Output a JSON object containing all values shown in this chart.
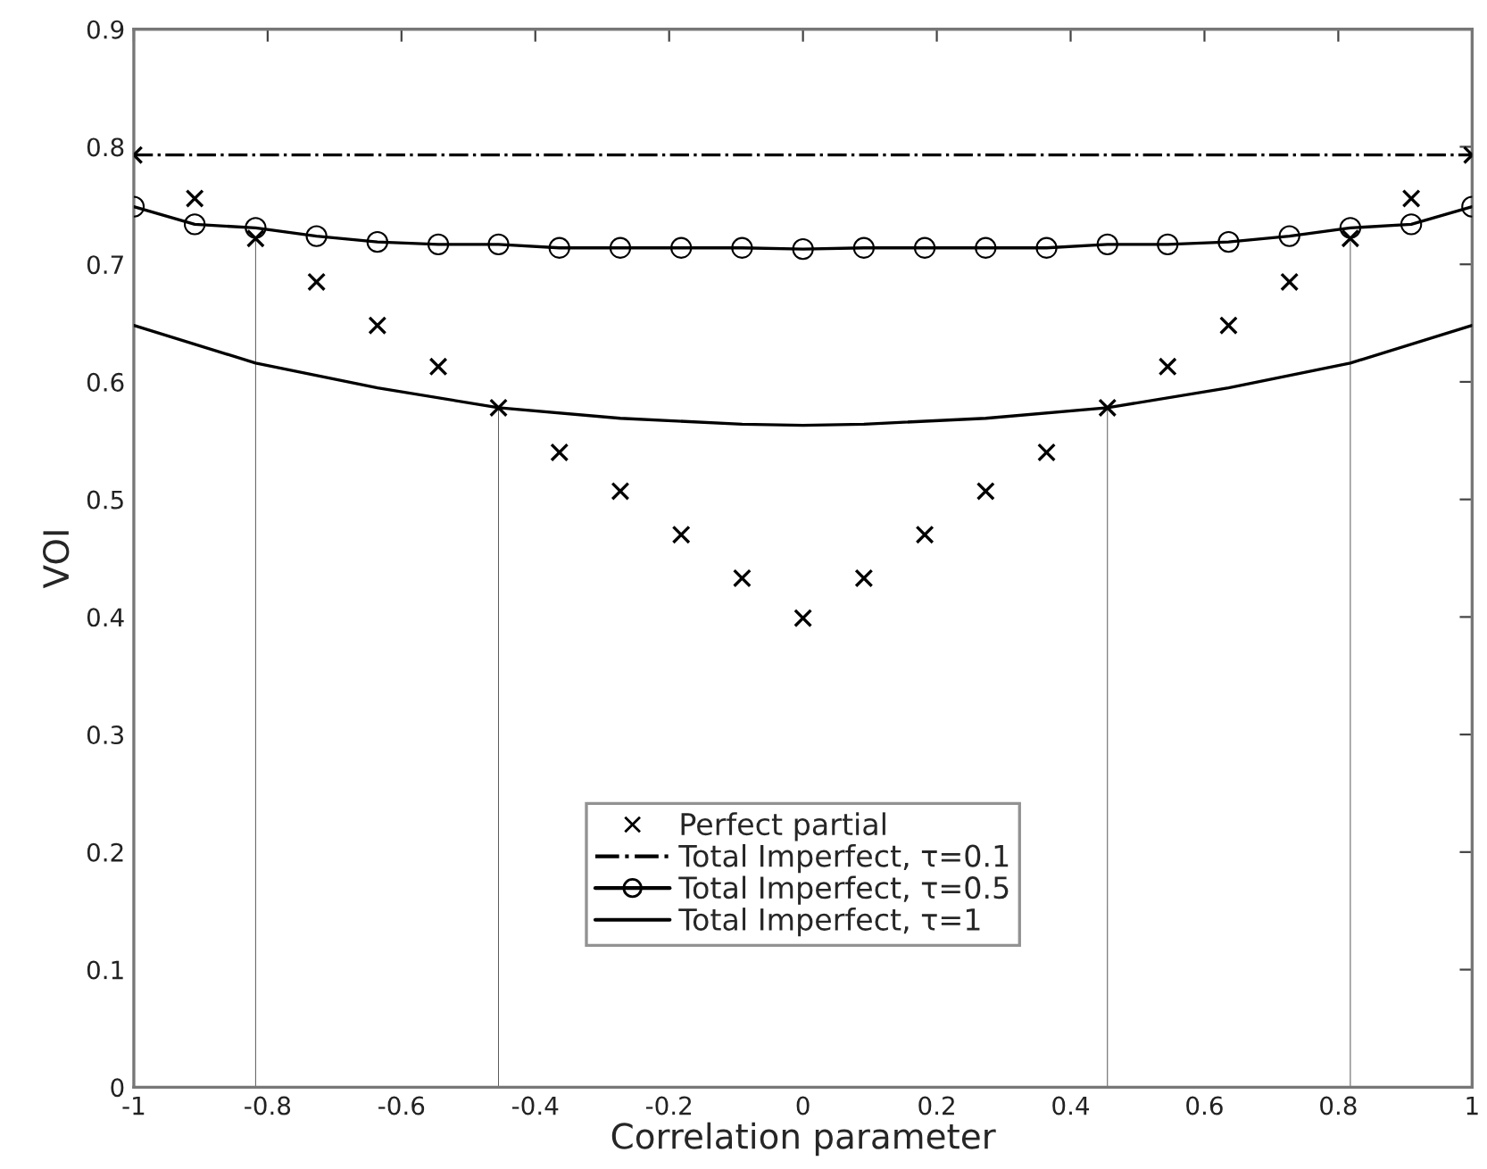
{
  "chart_data": {
    "type": "scatter",
    "xlabel": "Correlation parameter",
    "ylabel": "VOI",
    "xlim": [
      -1,
      1
    ],
    "ylim": [
      0,
      0.9
    ],
    "xticks": [
      -1,
      -0.8,
      -0.6,
      -0.4,
      -0.2,
      0,
      0.2,
      0.4,
      0.6,
      0.8,
      1
    ],
    "yticks": [
      0,
      0.1,
      0.2,
      0.3,
      0.4,
      0.5,
      0.6,
      0.7,
      0.8,
      0.9
    ],
    "grid": false,
    "legend": "bottom",
    "series": [
      {
        "name": "Perfect partial",
        "marker": "cross",
        "color": "#000000",
        "x": [
          -1,
          -0.909,
          -0.818,
          -0.727,
          -0.636,
          -0.545,
          -0.455,
          -0.364,
          -0.273,
          -0.182,
          -0.091,
          0,
          0.091,
          0.182,
          0.273,
          0.364,
          0.455,
          0.545,
          0.636,
          0.727,
          0.818,
          0.909,
          1
        ],
        "values": [
          0.793,
          0.756,
          0.722,
          0.685,
          0.648,
          0.613,
          0.578,
          0.54,
          0.507,
          0.47,
          0.433,
          0.399,
          0.433,
          0.47,
          0.507,
          0.54,
          0.578,
          0.613,
          0.648,
          0.685,
          0.722,
          0.756,
          0.793
        ]
      },
      {
        "name": "Total Imperfect, τ=0.1",
        "type": "line",
        "line_style": "dashdot",
        "marker": "none",
        "color": "#000000",
        "x": [
          -1,
          1
        ],
        "values": [
          0.793,
          0.793
        ]
      },
      {
        "name": "Total Imperfect, τ=0.5",
        "type": "line",
        "line_style": "solid",
        "marker": "circle",
        "color": "#000000",
        "x": [
          -1,
          -0.909,
          -0.818,
          -0.727,
          -0.636,
          -0.545,
          -0.455,
          -0.364,
          -0.273,
          -0.182,
          -0.091,
          0,
          0.091,
          0.182,
          0.273,
          0.364,
          0.455,
          0.545,
          0.636,
          0.727,
          0.818,
          0.909,
          1
        ],
        "values": [
          0.749,
          0.734,
          0.731,
          0.724,
          0.719,
          0.717,
          0.717,
          0.714,
          0.714,
          0.714,
          0.714,
          0.713,
          0.714,
          0.714,
          0.714,
          0.714,
          0.717,
          0.717,
          0.719,
          0.724,
          0.731,
          0.734,
          0.749
        ]
      },
      {
        "name": "Total Imperfect, τ=1",
        "type": "line",
        "line_style": "solid",
        "marker": "none",
        "color": "#000000",
        "x": [
          -1,
          -0.818,
          -0.636,
          -0.455,
          -0.273,
          -0.091,
          0,
          0.091,
          0.273,
          0.455,
          0.636,
          0.818,
          1
        ],
        "values": [
          0.648,
          0.616,
          0.595,
          0.578,
          0.569,
          0.564,
          0.563,
          0.564,
          0.569,
          0.578,
          0.595,
          0.616,
          0.648
        ]
      },
      {
        "type": "bar",
        "color": "#555555",
        "x": [
          -0.818,
          -0.455,
          0.455,
          0.818
        ],
        "values": [
          0.722,
          0.578,
          0.578,
          0.722
        ]
      }
    ]
  }
}
